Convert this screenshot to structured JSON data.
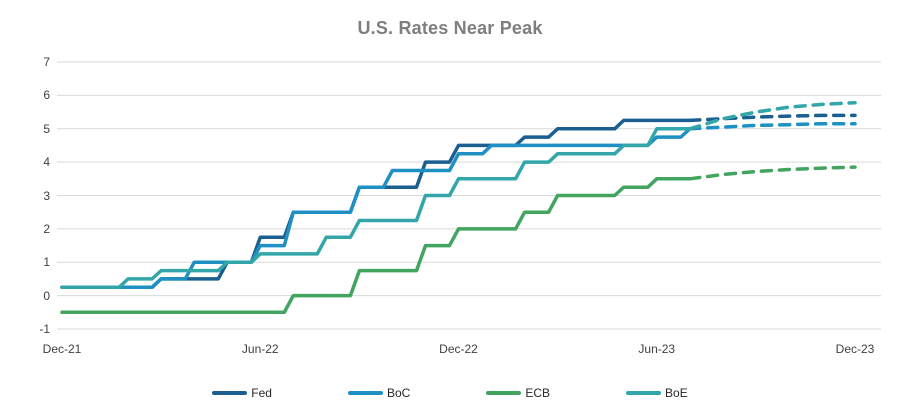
{
  "page": {
    "title": "U.S. Rates Near Peak"
  },
  "theme": {
    "background": "#FFFFFF",
    "grid_color": "#D9D9D9",
    "title_color": "#7E7E7E",
    "axis_text_color": "#3F3F3F",
    "legend_text_color": "#262626"
  },
  "chart_data": {
    "type": "line",
    "subtype": "step",
    "title": "U.S. Rates Near Peak",
    "xlabel": "",
    "ylabel": "",
    "ylim": [
      -1,
      7
    ],
    "grid": "horizontal",
    "legend_position": "bottom",
    "y_ticks": [
      7,
      6,
      5,
      4,
      3,
      2,
      1,
      0,
      -1
    ],
    "x_ticks": [
      {
        "label": "Dec-21",
        "month": 0
      },
      {
        "label": "Jun-22",
        "month": 6
      },
      {
        "label": "Dec-22",
        "month": 12
      },
      {
        "label": "Jun-23",
        "month": 18
      },
      {
        "label": "Dec-23",
        "month": 24
      }
    ],
    "months": [
      "Dec-21",
      "Jan-22",
      "Feb-22",
      "Mar-22",
      "Apr-22",
      "May-22",
      "Jun-22",
      "Jul-22",
      "Aug-22",
      "Sep-22",
      "Oct-22",
      "Nov-22",
      "Dec-22",
      "Jan-23",
      "Feb-23",
      "Mar-23",
      "Apr-23",
      "May-23",
      "Jun-23",
      "Jul-23",
      "Aug-23",
      "Sep-23",
      "Oct-23",
      "Nov-23",
      "Dec-23"
    ],
    "forecast_start_month": 19,
    "series": [
      {
        "name": "Fed",
        "color": "#1B5E90",
        "solid": [
          0.25,
          0.25,
          0.25,
          0.5,
          0.5,
          1.0,
          1.75,
          2.5,
          2.5,
          3.25,
          3.25,
          4.0,
          4.5,
          4.5,
          4.75,
          5.0,
          5.0,
          5.25,
          5.25,
          5.25
        ],
        "dashed": [
          5.25,
          5.3,
          5.35,
          5.38,
          5.4,
          5.4
        ]
      },
      {
        "name": "BoC",
        "color": "#1F90C4",
        "solid": [
          0.25,
          0.25,
          0.25,
          0.5,
          1.0,
          1.0,
          1.5,
          2.5,
          2.5,
          3.25,
          3.75,
          3.75,
          4.25,
          4.5,
          4.5,
          4.5,
          4.5,
          4.5,
          4.75,
          5.0
        ],
        "dashed": [
          5.0,
          5.05,
          5.1,
          5.12,
          5.15,
          5.15
        ]
      },
      {
        "name": "ECB",
        "color": "#42A45F",
        "solid": [
          -0.5,
          -0.5,
          -0.5,
          -0.5,
          -0.5,
          -0.5,
          -0.5,
          0.0,
          0.0,
          0.75,
          0.75,
          1.5,
          2.0,
          2.0,
          2.5,
          3.0,
          3.0,
          3.25,
          3.5,
          3.5
        ],
        "dashed": [
          3.5,
          3.63,
          3.72,
          3.78,
          3.82,
          3.85
        ]
      },
      {
        "name": "BoE",
        "color": "#32A6A8",
        "solid": [
          0.25,
          0.25,
          0.5,
          0.75,
          0.75,
          1.0,
          1.25,
          1.25,
          1.75,
          2.25,
          2.25,
          3.0,
          3.5,
          3.5,
          4.0,
          4.25,
          4.25,
          4.5,
          5.0,
          5.0
        ],
        "dashed": [
          5.0,
          5.3,
          5.5,
          5.65,
          5.73,
          5.78
        ]
      }
    ]
  }
}
